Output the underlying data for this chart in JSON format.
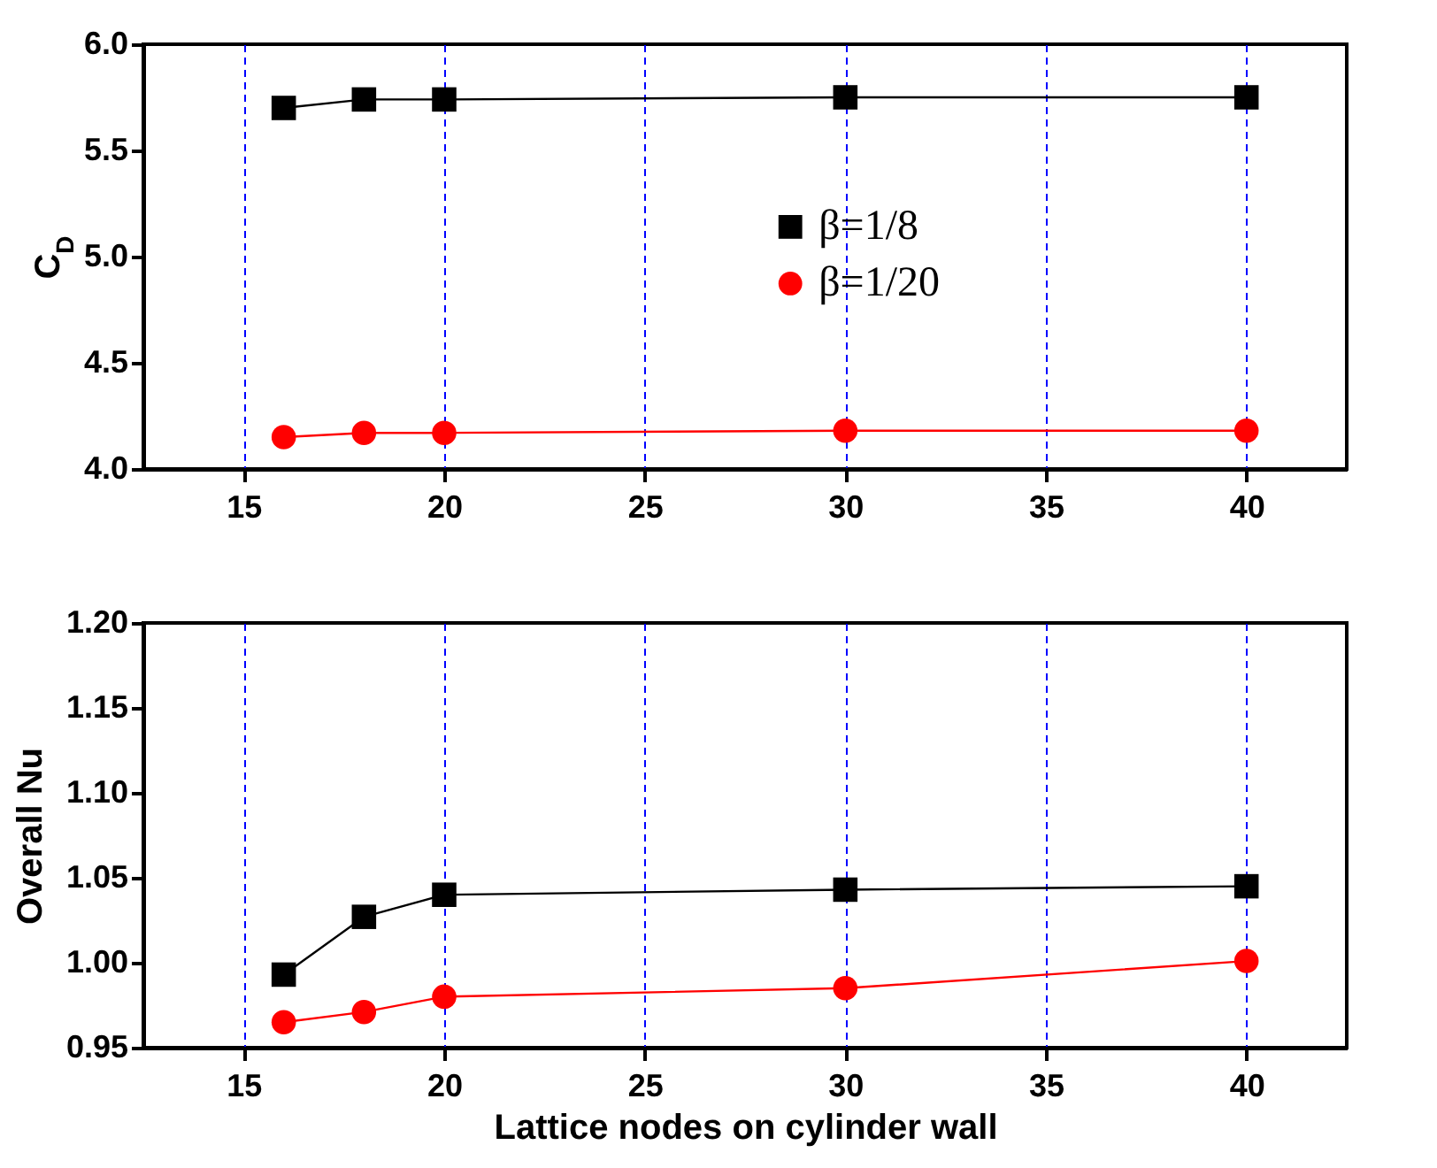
{
  "chart_data": [
    {
      "type": "line",
      "ylabel": "C$_{D}$",
      "x": [
        16,
        18,
        20,
        30,
        40
      ],
      "xlim": [
        12.5,
        42.5
      ],
      "xticks": [
        15,
        20,
        25,
        30,
        35,
        40
      ],
      "ylim": [
        4.0,
        6.0
      ],
      "yticks": [
        {
          "value": 4,
          "label": "4.0"
        },
        4.5,
        {
          "value": 5,
          "label": "5.0"
        },
        5.5,
        {
          "value": 6,
          "label": "6.0"
        }
      ],
      "grid": "x",
      "legend": "right",
      "series": [
        {
          "name": "β=1/8",
          "color": "#000000",
          "marker": "square",
          "values": [
            5.7,
            5.74,
            5.74,
            5.75,
            5.75
          ]
        },
        {
          "name": "β=1/20",
          "color": "#ff0000",
          "marker": "circle",
          "values": [
            4.15,
            4.17,
            4.17,
            4.18,
            4.18
          ]
        }
      ]
    },
    {
      "type": "line",
      "xlabel": "Lattice nodes on cylinder wall",
      "ylabel": "Overall Nu",
      "x": [
        16,
        18,
        20,
        30,
        40
      ],
      "xlim": [
        12.5,
        42.5
      ],
      "xticks": [
        15,
        20,
        25,
        30,
        35,
        40
      ],
      "ylim": [
        0.95,
        1.2
      ],
      "yticks": [
        0.95,
        {
          "value": 1,
          "label": "1.00"
        },
        1.05,
        {
          "value": 1.1,
          "label": "1.10"
        },
        1.15,
        {
          "value": 1.2,
          "label": "1.20"
        }
      ],
      "grid": "x",
      "series": [
        {
          "color": "#000000",
          "marker": "square",
          "values": [
            0.993,
            1.027,
            1.04,
            1.043,
            1.045
          ]
        },
        {
          "color": "#ff0000",
          "marker": "circle",
          "values": [
            0.965,
            0.971,
            0.98,
            0.985,
            1.001
          ]
        }
      ]
    }
  ]
}
